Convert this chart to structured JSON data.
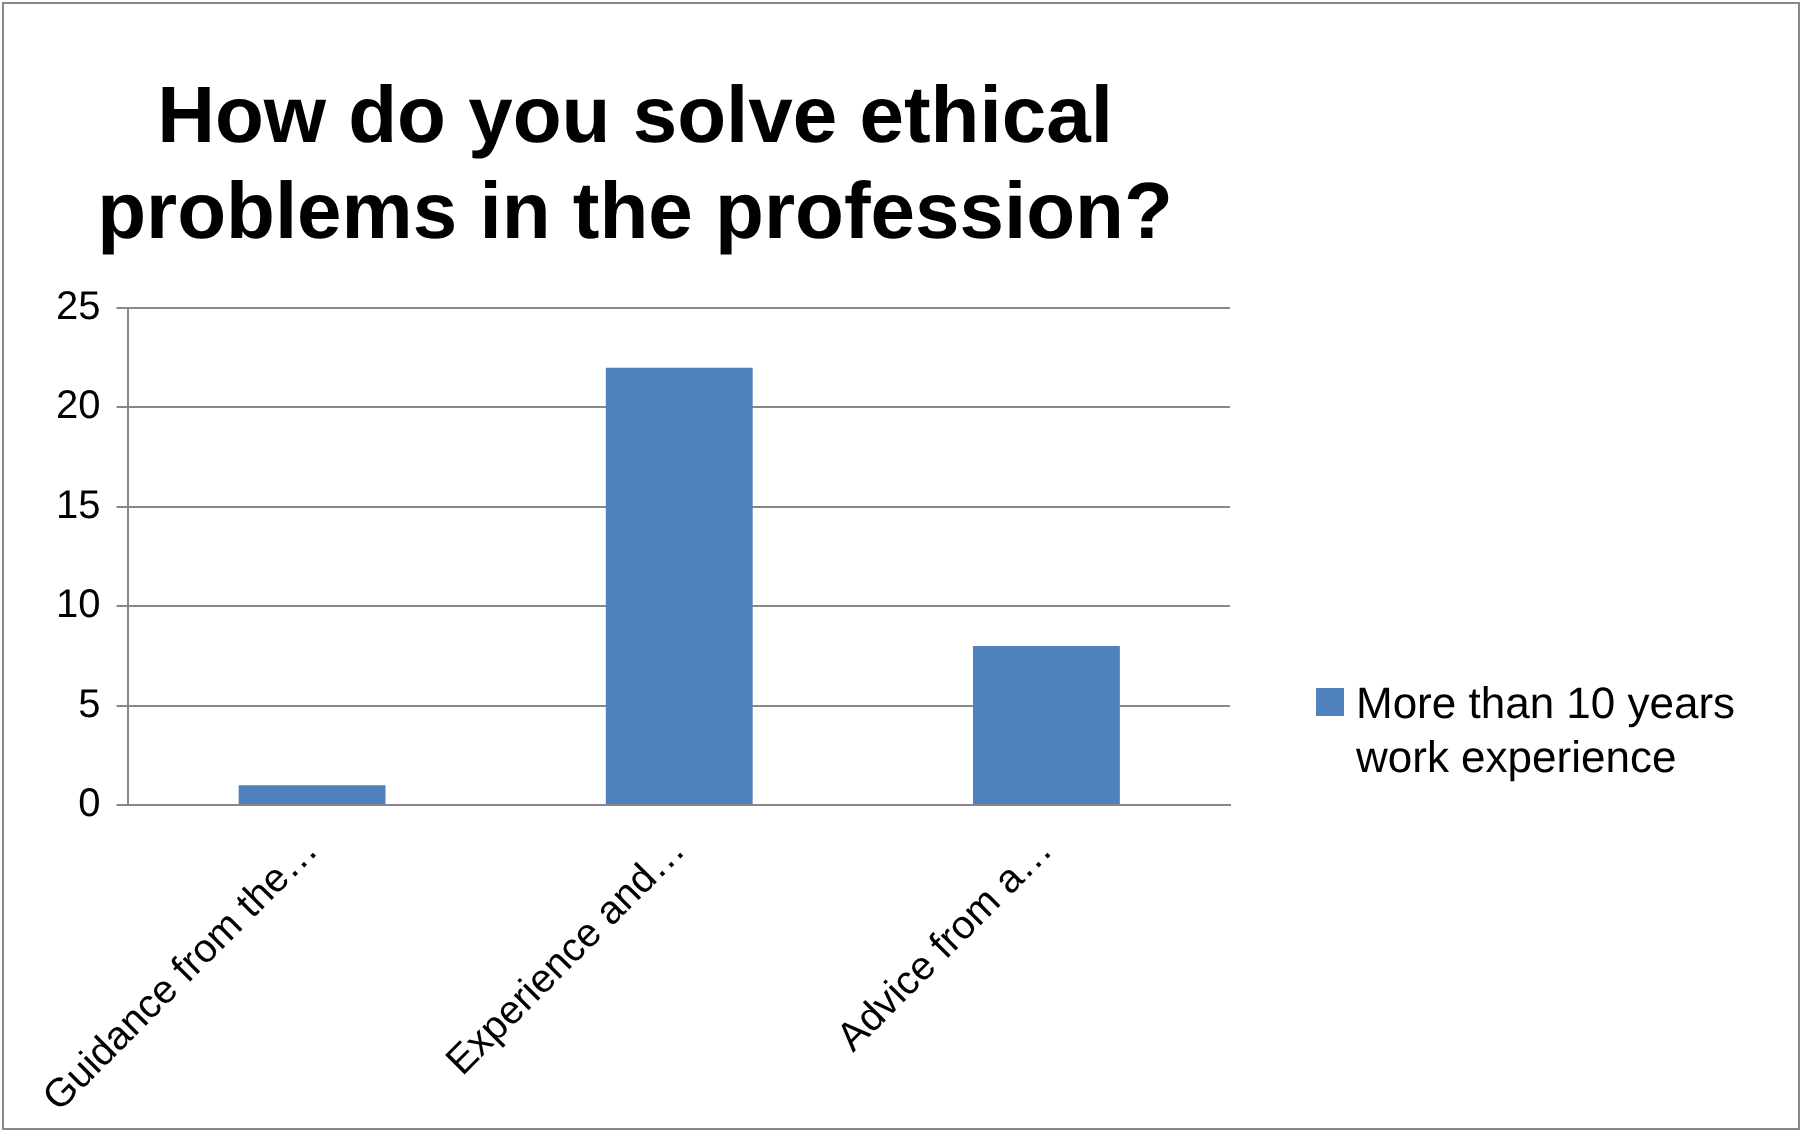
{
  "chart_data": {
    "type": "bar",
    "title": "How do you solve ethical problems in the profession?",
    "categories": [
      "Guidance from the…",
      "Experience and…",
      "Advice from a…"
    ],
    "series": [
      {
        "name": "More than 10 years work experience",
        "color": "#4f81bd",
        "values": [
          1,
          22,
          8
        ]
      }
    ],
    "ylim": [
      0,
      25
    ],
    "yticks": [
      0,
      5,
      10,
      15,
      20,
      25
    ],
    "grid": "y",
    "legend": "right"
  }
}
